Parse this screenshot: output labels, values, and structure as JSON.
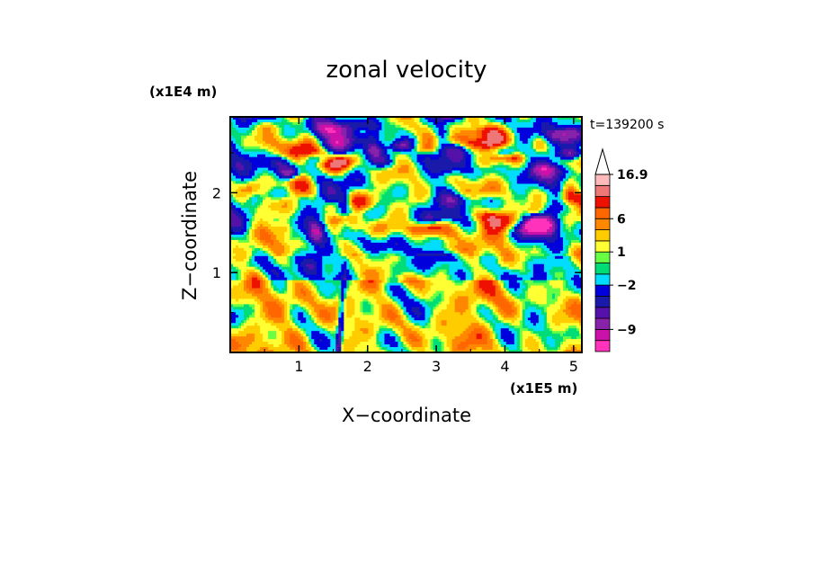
{
  "chart_data": {
    "type": "heatmap",
    "title": "zonal velocity",
    "xlabel": "X−coordinate",
    "ylabel": "Z−coordinate",
    "x_unit": "(x1E5 m)",
    "y_unit": "(x1E4 m)",
    "annotation": "t=139200 s",
    "xlim": [
      0,
      5.12
    ],
    "ylim": [
      0,
      2.95
    ],
    "x_ticks": [
      {
        "value": 1,
        "label": "1"
      },
      {
        "value": 2,
        "label": "2"
      },
      {
        "value": 3,
        "label": "3"
      },
      {
        "value": 4,
        "label": "4"
      },
      {
        "value": 5,
        "label": "5"
      }
    ],
    "y_ticks": [
      {
        "value": 1,
        "label": "1"
      },
      {
        "value": 2,
        "label": "2"
      }
    ],
    "colorbar": {
      "levels": [
        {
          "color": "#ff33bb"
        },
        {
          "color": "#cc11aa"
        },
        {
          "color": "#8822aa"
        },
        {
          "color": "#5511aa"
        },
        {
          "color": "#1a1aaa"
        },
        {
          "color": "#0000dd"
        },
        {
          "color": "#00ddff"
        },
        {
          "color": "#00dd77"
        },
        {
          "color": "#66ff44"
        },
        {
          "color": "#ffff33"
        },
        {
          "color": "#ffcc00"
        },
        {
          "color": "#ff8800"
        },
        {
          "color": "#ff6600"
        },
        {
          "color": "#ee1100"
        },
        {
          "color": "#ee7777"
        },
        {
          "color": "#ffbbbb"
        }
      ],
      "labels": [
        {
          "text": "−9",
          "after_level": 2
        },
        {
          "text": "−2",
          "after_level": 6
        },
        {
          "text": "1",
          "after_level": 9
        },
        {
          "text": "6",
          "after_level": 12
        },
        {
          "text": "16.9",
          "after_level": 16
        }
      ],
      "extend": "max"
    },
    "legend_position": "right"
  }
}
